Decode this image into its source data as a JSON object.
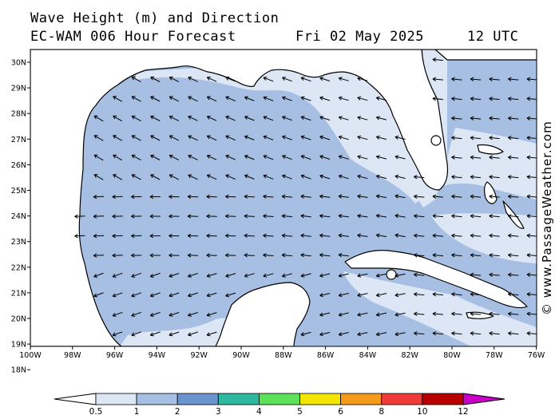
{
  "header": {
    "line1": "Wave Height (m) and Direction",
    "line2": "EC-WAM 006 Hour Forecast",
    "date": "Fri 02 May 2025",
    "time": "12 UTC"
  },
  "watermark": "© www.PassageWeather.com",
  "axes": {
    "lat_labels": [
      "30N",
      "29N",
      "28N",
      "27N",
      "26N",
      "25N",
      "24N",
      "23N",
      "22N",
      "21N",
      "20N",
      "19N",
      "18N"
    ],
    "lon_labels": [
      "100W",
      "98W",
      "96W",
      "94W",
      "92W",
      "90W",
      "88W",
      "86W",
      "84W",
      "82W",
      "80W",
      "78W",
      "76W"
    ]
  },
  "colorbar": {
    "labels": [
      "0.5",
      "1",
      "2",
      "3",
      "4",
      "5",
      "6",
      "8",
      "10",
      "12"
    ],
    "colors": [
      "#dde6f5",
      "#a6bfe3",
      "#6b93cf",
      "#2fb8a0",
      "#5de05a",
      "#f2e600",
      "#f59a1a",
      "#ef3a3a",
      "#b90000",
      "#c800c8"
    ]
  },
  "colors": {
    "sea_low": "#dde6f5",
    "sea_mid": "#a6bfe3",
    "land": "#ffffff"
  }
}
